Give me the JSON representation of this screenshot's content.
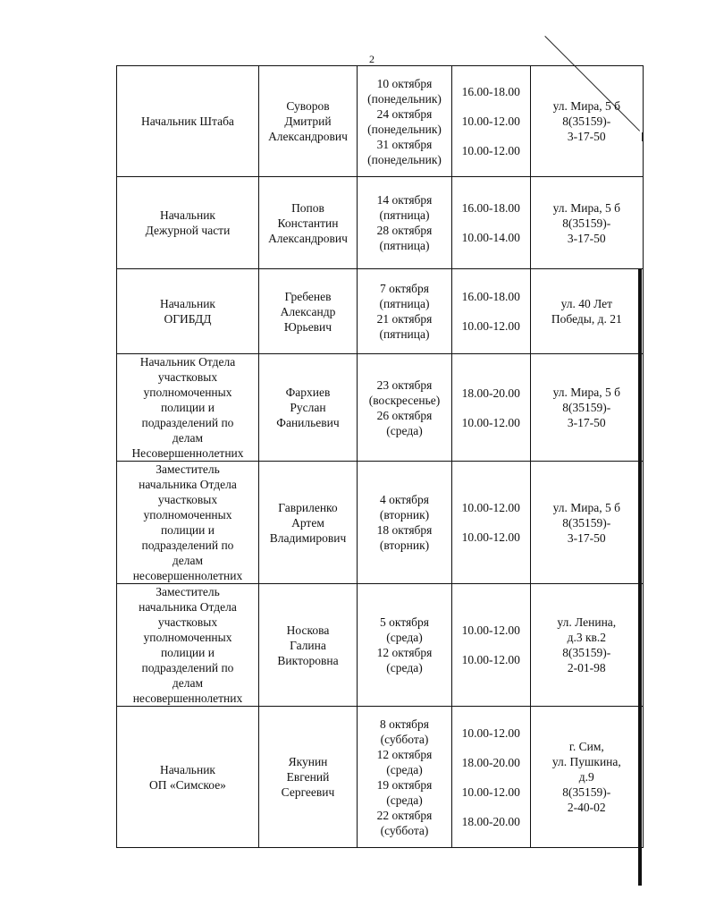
{
  "page_number": "2",
  "rows": [
    {
      "position": [
        "Начальник Штаба"
      ],
      "name": [
        "Суворов",
        "Дмитрий",
        "Александрович"
      ],
      "dates": [
        "10 октября",
        "(понедельник)",
        "24 октября",
        "(понедельник)",
        "31 октября",
        "(понедельник)"
      ],
      "times": [
        "16.00-18.00",
        "10.00-12.00",
        "10.00-12.00"
      ],
      "address": [
        "ул. Мира, 5 б",
        "8(35159)-",
        "3-17-50"
      ]
    },
    {
      "position": [
        "Начальник",
        "Дежурной части"
      ],
      "name": [
        "Попов",
        "Константин",
        "Александрович"
      ],
      "dates": [
        "14 октября",
        "(пятница)",
        "28 октября",
        "(пятница)"
      ],
      "times": [
        "16.00-18.00",
        "10.00-14.00"
      ],
      "address": [
        "ул. Мира, 5 б",
        "8(35159)-",
        "3-17-50"
      ]
    },
    {
      "position": [
        "Начальник",
        "ОГИБДД"
      ],
      "name": [
        "Гребенев",
        "Александр",
        "Юрьевич"
      ],
      "dates": [
        "7 октября",
        "(пятница)",
        "21 октября",
        "(пятница)"
      ],
      "times": [
        "16.00-18.00",
        "10.00-12.00"
      ],
      "address": [
        "ул. 40 Лет",
        "Победы, д. 21"
      ]
    },
    {
      "position": [
        "Начальник Отдела",
        "участковых",
        "уполномоченных",
        "полиции и",
        "подразделений по",
        "делам",
        "Несовершеннолетних"
      ],
      "name": [
        "Фархиев",
        "Руслан",
        "Фанильевич"
      ],
      "dates": [
        "23 октября",
        "(воскресенье)",
        "26 октября",
        "(среда)"
      ],
      "times": [
        "18.00-20.00",
        "10.00-12.00"
      ],
      "address": [
        "ул. Мира, 5 б",
        "8(35159)-",
        "3-17-50"
      ]
    },
    {
      "position": [
        "Заместитель",
        "начальника Отдела",
        "участковых",
        "уполномоченных",
        "полиции и",
        "подразделений по",
        "делам",
        "несовершеннолетних"
      ],
      "name": [
        "Гавриленко",
        "Артем",
        "Владимирович"
      ],
      "dates": [
        "4 октября",
        "(вторник)",
        "18 октября",
        "(вторник)"
      ],
      "times": [
        "10.00-12.00",
        "10.00-12.00"
      ],
      "address": [
        "ул. Мира, 5 б",
        "8(35159)-",
        "3-17-50"
      ]
    },
    {
      "position": [
        "Заместитель",
        "начальника Отдела",
        "участковых",
        "уполномоченных",
        "полиции и",
        "подразделений по",
        "делам",
        "несовершеннолетних"
      ],
      "name": [
        "Носкова",
        "Галина",
        "Викторовна"
      ],
      "dates": [
        "5 октября",
        "(среда)",
        "12 октября",
        "(среда)"
      ],
      "times": [
        "10.00-12.00",
        "10.00-12.00"
      ],
      "address": [
        "ул. Ленина,",
        "д.3 кв.2",
        "8(35159)-",
        "2-01-98"
      ]
    },
    {
      "position": [
        "Начальник",
        "ОП «Симское»"
      ],
      "name": [
        "Якунин",
        "Евгений",
        "Сергеевич"
      ],
      "dates": [
        "8 октября",
        "(суббота)",
        "12 октября",
        "(среда)",
        "19 октября",
        "(среда)",
        "22 октября",
        "(суббота)"
      ],
      "times": [
        "10.00-12.00",
        "18.00-20.00",
        "10.00-12.00",
        "18.00-20.00"
      ],
      "address": [
        "г. Сим,",
        "ул. Пушкина,",
        "д.9",
        "8(35159)-",
        "2-40-02"
      ]
    }
  ]
}
